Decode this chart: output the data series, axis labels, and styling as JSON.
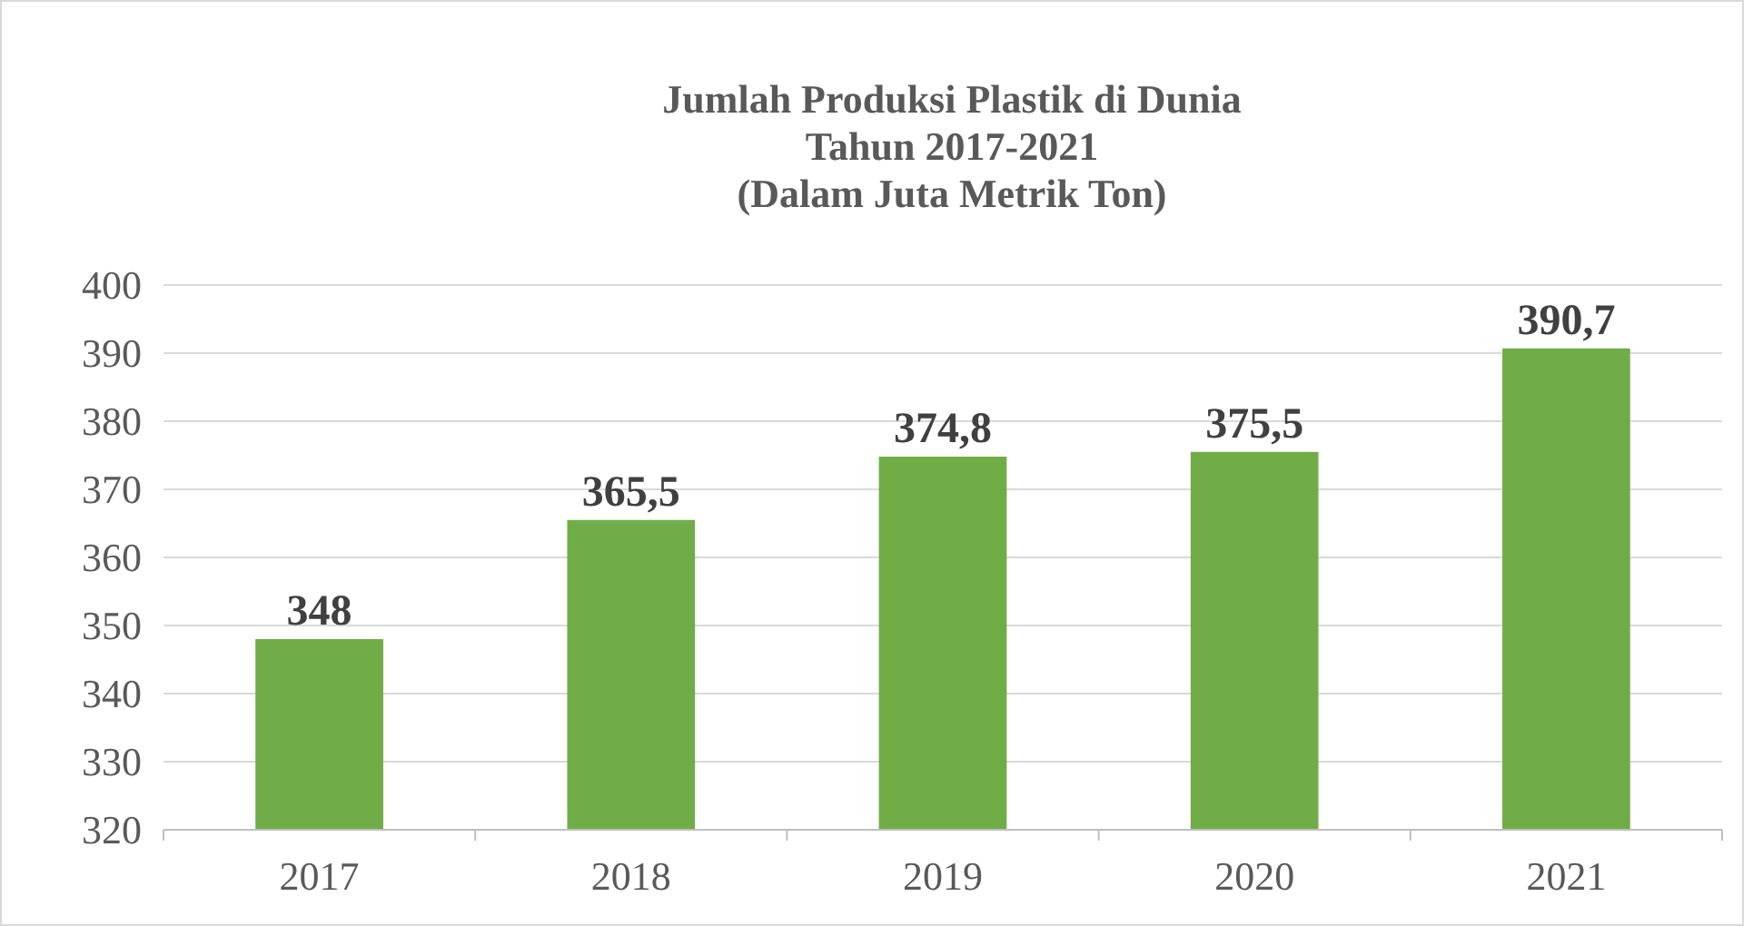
{
  "chart_data": {
    "type": "bar",
    "title": "Jumlah Produksi Plastik di Dunia\nTahun 2017-2021\n(Dalam Juta Metrik Ton)",
    "categories": [
      "2017",
      "2018",
      "2019",
      "2020",
      "2021"
    ],
    "values": [
      348,
      365.5,
      374.8,
      375.5,
      390.7
    ],
    "value_labels": [
      "348",
      "365,5",
      "374,8",
      "375,5",
      "390,7"
    ],
    "color": "#70ad47",
    "ylim": [
      320,
      400
    ],
    "yticks": [
      320,
      330,
      340,
      350,
      360,
      370,
      380,
      390,
      400
    ],
    "grid": "y"
  }
}
